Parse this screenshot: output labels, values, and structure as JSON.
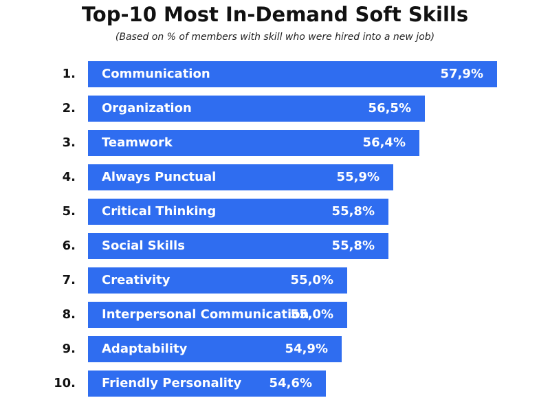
{
  "colors": {
    "bar": "#2f6df0",
    "text": "#111111",
    "bar_text": "#ffffff"
  },
  "chart_data": {
    "type": "bar",
    "orientation": "horizontal",
    "title": "Top-10 Most In-Demand Soft Skills",
    "subtitle": "(Based on % of members with skill who were hired into a new job)",
    "xlabel": "",
    "ylabel": "",
    "grid": false,
    "legend": "none",
    "xlim": [
      0,
      57.9
    ],
    "ranks": [
      "1.",
      "2.",
      "3.",
      "4.",
      "5.",
      "6.",
      "7.",
      "8.",
      "9.",
      "10."
    ],
    "categories": [
      "Communication",
      "Organization",
      "Teamwork",
      "Always Punctual",
      "Critical Thinking",
      "Social Skills",
      "Creativity",
      "Interpersonal Communication",
      "Adaptability",
      "Friendly Personality"
    ],
    "values": [
      57.9,
      56.5,
      56.4,
      55.9,
      55.8,
      55.8,
      55.0,
      55.0,
      54.9,
      54.6
    ],
    "value_labels": [
      "57,9%",
      "56,5%",
      "56,4%",
      "55,9%",
      "55,8%",
      "55,8%",
      "55,0%",
      "55,0%",
      "54,9%",
      "54,6%"
    ]
  }
}
